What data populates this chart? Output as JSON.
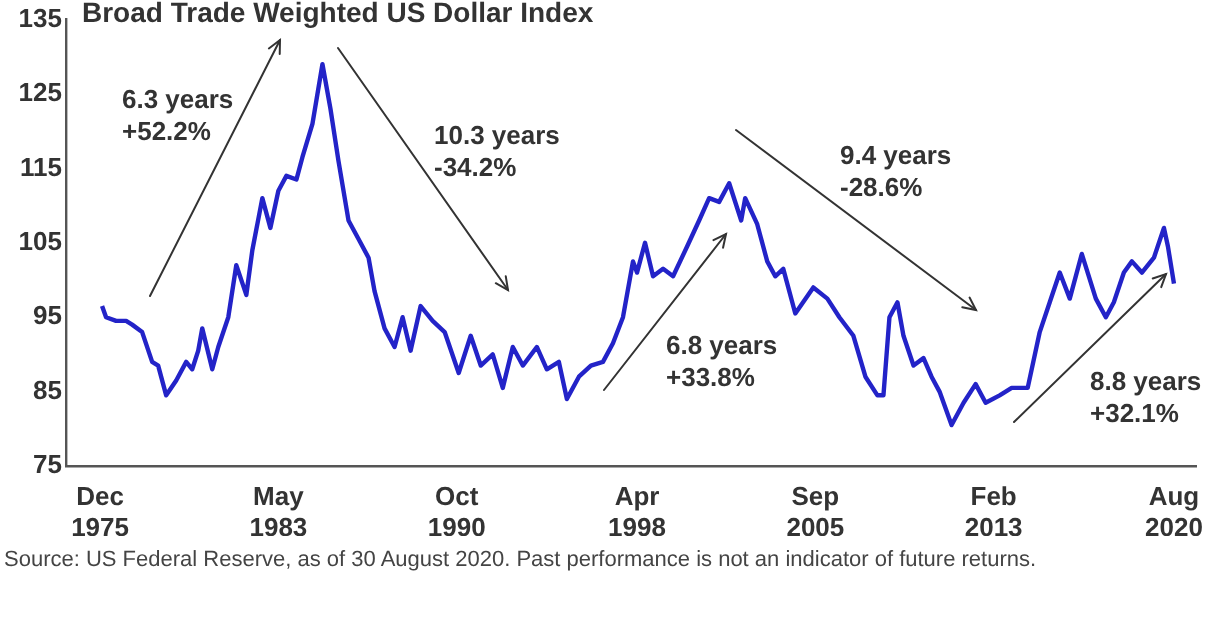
{
  "chart_data": {
    "type": "line",
    "title": "Broad Trade Weighted US Dollar Index",
    "x": [
      "1976-01",
      "1976-03",
      "1976-08",
      "1977-01",
      "1977-04",
      "1977-09",
      "1978-02",
      "1978-05",
      "1978-09",
      "1979-02",
      "1979-07",
      "1979-10",
      "1980-01",
      "1980-03",
      "1980-08",
      "1980-11",
      "1981-04",
      "1981-08",
      "1982-01",
      "1982-04",
      "1982-09",
      "1983-01",
      "1983-05",
      "1983-09",
      "1984-02",
      "1984-05",
      "1984-10",
      "1985-03",
      "1985-07",
      "1985-11",
      "1986-04",
      "1986-09",
      "1987-02",
      "1987-05",
      "1987-10",
      "1988-03",
      "1988-07",
      "1988-11",
      "1989-04",
      "1989-10",
      "1990-04",
      "1990-11",
      "1991-05",
      "1991-10",
      "1992-04",
      "1992-09",
      "1993-02",
      "1993-07",
      "1994-02",
      "1994-07",
      "1995-01",
      "1995-05",
      "1995-11",
      "1996-05",
      "1996-11",
      "1997-04",
      "1997-09",
      "1998-02",
      "1998-04",
      "1998-08",
      "1998-12",
      "1999-05",
      "1999-10",
      "2000-05",
      "2000-11",
      "2001-04",
      "2001-09",
      "2002-02",
      "2002-08",
      "2002-10",
      "2003-04",
      "2003-09",
      "2004-01",
      "2004-05",
      "2004-11",
      "2005-08",
      "2006-03",
      "2006-09",
      "2007-04",
      "2007-10",
      "2008-04",
      "2008-07",
      "2008-10",
      "2009-02",
      "2009-05",
      "2009-10",
      "2010-03",
      "2010-07",
      "2010-11",
      "2011-05",
      "2011-11",
      "2012-05",
      "2012-10",
      "2013-05",
      "2013-11",
      "2014-07",
      "2015-01",
      "2015-06",
      "2015-11",
      "2016-04",
      "2016-10",
      "2017-05",
      "2017-10",
      "2018-02",
      "2018-07",
      "2018-11",
      "2019-04",
      "2019-10",
      "2020-03",
      "2020-05",
      "2020-08"
    ],
    "series": [
      {
        "color": "#2323c8",
        "values": [
          96.5,
          95,
          94.5,
          94.5,
          94,
          93,
          89,
          88.5,
          84.5,
          86.5,
          89,
          88,
          90.5,
          93.5,
          88,
          91,
          95,
          102,
          98,
          104,
          111,
          107,
          112,
          114,
          113.5,
          116.5,
          121,
          129,
          123,
          116,
          108,
          105.5,
          103,
          98.5,
          93.5,
          91,
          95,
          90.5,
          96.5,
          94.5,
          93,
          87.5,
          92.5,
          88.5,
          90,
          85.5,
          91,
          88.5,
          91,
          88,
          89,
          84,
          87,
          88.5,
          89,
          91.5,
          95,
          102.5,
          101,
          105,
          100.5,
          101.5,
          100.5,
          104.5,
          108,
          111,
          110.5,
          113,
          108,
          111,
          107.5,
          102.5,
          100.5,
          101.5,
          95.5,
          99,
          97.5,
          95,
          92.5,
          87,
          84.5,
          84.5,
          95,
          97,
          92.5,
          88.5,
          89.5,
          87,
          85,
          80.5,
          83.5,
          86,
          83.5,
          84.5,
          85.5,
          85.5,
          93,
          97,
          101,
          97.5,
          103.5,
          97.5,
          95,
          97,
          101,
          102.5,
          101,
          103,
          107,
          104.5,
          99.5
        ]
      }
    ],
    "xlim": [
      "1974-07",
      "2021-07"
    ],
    "xticks": [
      {
        "value": "1975-12",
        "label": "Dec 1975"
      },
      {
        "value": "1983-05",
        "label": "May 1983"
      },
      {
        "value": "1990-10",
        "label": "Oct 1990"
      },
      {
        "value": "1998-04",
        "label": "Apr 1998"
      },
      {
        "value": "2005-09",
        "label": "Sep 2005"
      },
      {
        "value": "2013-02",
        "label": "Feb 2013"
      },
      {
        "value": "2020-08",
        "label": "Aug 2020"
      }
    ],
    "ylim": [
      75,
      135
    ],
    "yticks": [
      75,
      85,
      95,
      105,
      115,
      125,
      135
    ],
    "grid": false,
    "legend": false,
    "marker": "none",
    "line_style": "solid",
    "annotations": [
      "6.3 years\n+52.2%",
      "10.3 years\n-34.2%",
      "6.8 years\n+33.8%",
      "9.4 years\n-28.6%",
      "8.8 years\n+32.1%",
      "Source: US Federal Reserve, as of 30 August 2020. Past performance is not an indicator of future returns."
    ]
  }
}
